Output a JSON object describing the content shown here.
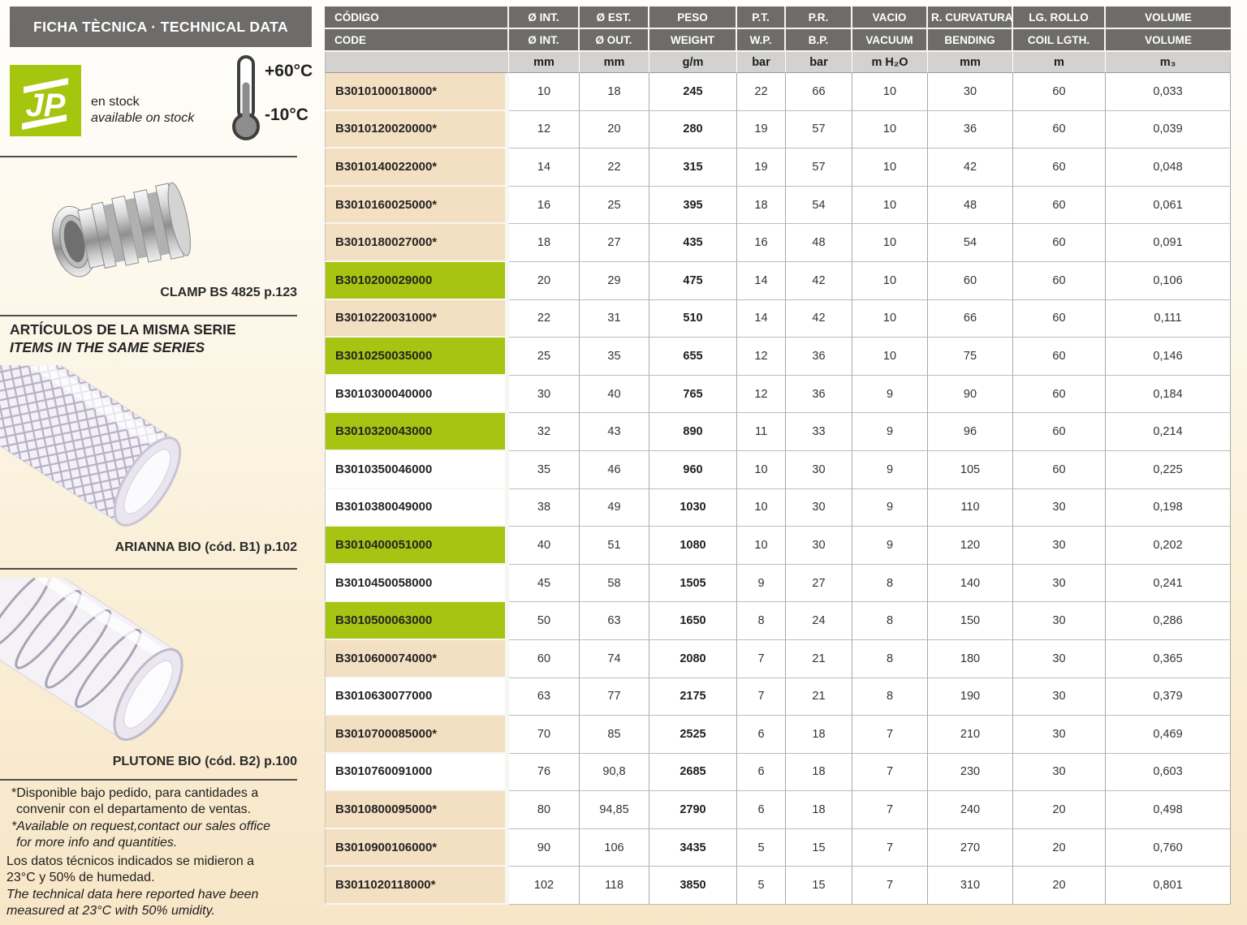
{
  "header": {
    "title": "FICHA TÈCNICA · TECHNICAL DATA"
  },
  "stock": {
    "logo_text": "JP",
    "line1": "en stock",
    "line2": "available on stock"
  },
  "temperature": {
    "max": "+60°C",
    "min": "-10°C"
  },
  "sidebar": {
    "clamp_label": "CLAMP BS 4825 p.123",
    "series_heading_es": "ARTÍCULOS DE LA MISMA SERIE",
    "series_heading_en": "ITEMS IN THE SAME SERIES",
    "arianna_label": "ARIANNA BIO (cód. B1) p.102",
    "plutone_label": "PLUTONE BIO (cód. B2) p.100",
    "footnote_available_es": "*Disponible bajo pedido, para cantidades a convenir con el departamento de ventas.",
    "footnote_available_en": "*Available on request,contact our sales office for more info and quantities.",
    "footnote_measured_es": "Los datos técnicos indicados se midieron a 23°C y 50% de humedad.",
    "footnote_measured_en": "The technical data here reported have been measured at 23°C with 50% umidity."
  },
  "colors": {
    "header_gray": "#6d6c6a",
    "unit_row_gray": "#d3d2d0",
    "highlight_green": "#a6c411",
    "highlight_tan": "#f3dfc1",
    "logo_green": "#a6c50f"
  },
  "table": {
    "columns": [
      {
        "es": "CÓDIGO",
        "en": "CODE",
        "unit": ""
      },
      {
        "es": "Ø INT.",
        "en": "Ø INT.",
        "unit": "mm"
      },
      {
        "es": "Ø EST.",
        "en": "Ø OUT.",
        "unit": "mm"
      },
      {
        "es": "PESO",
        "en": "WEIGHT",
        "unit": "g/m"
      },
      {
        "es": "P.T.",
        "en": "W.P.",
        "unit": "bar"
      },
      {
        "es": "P.R.",
        "en": "B.P.",
        "unit": "bar"
      },
      {
        "es": "VACIO",
        "en": "VACUUM",
        "unit": "m H₂O"
      },
      {
        "es": "R. CURVATURA",
        "en": "BENDING",
        "unit": "mm"
      },
      {
        "es": "LG. ROLLO",
        "en": "COIL LGTH.",
        "unit": "m"
      },
      {
        "es": "VOLUME",
        "en": "VOLUME",
        "unit": "m₃"
      }
    ],
    "rows": [
      {
        "code": "B3010100018000*",
        "highlight": "tan",
        "values": [
          "10",
          "18",
          "245",
          "22",
          "66",
          "10",
          "30",
          "60",
          "0,033"
        ]
      },
      {
        "code": "B3010120020000*",
        "highlight": "tan",
        "values": [
          "12",
          "20",
          "280",
          "19",
          "57",
          "10",
          "36",
          "60",
          "0,039"
        ]
      },
      {
        "code": "B3010140022000*",
        "highlight": "tan",
        "values": [
          "14",
          "22",
          "315",
          "19",
          "57",
          "10",
          "42",
          "60",
          "0,048"
        ]
      },
      {
        "code": "B3010160025000*",
        "highlight": "tan",
        "values": [
          "16",
          "25",
          "395",
          "18",
          "54",
          "10",
          "48",
          "60",
          "0,061"
        ]
      },
      {
        "code": "B3010180027000*",
        "highlight": "tan",
        "values": [
          "18",
          "27",
          "435",
          "16",
          "48",
          "10",
          "54",
          "60",
          "0,091"
        ]
      },
      {
        "code": "B3010200029000",
        "highlight": "green",
        "values": [
          "20",
          "29",
          "475",
          "14",
          "42",
          "10",
          "60",
          "60",
          "0,106"
        ]
      },
      {
        "code": "B3010220031000*",
        "highlight": "tan",
        "values": [
          "22",
          "31",
          "510",
          "14",
          "42",
          "10",
          "66",
          "60",
          "0,111"
        ]
      },
      {
        "code": "B3010250035000",
        "highlight": "green",
        "values": [
          "25",
          "35",
          "655",
          "12",
          "36",
          "10",
          "75",
          "60",
          "0,146"
        ]
      },
      {
        "code": "B3010300040000",
        "highlight": "",
        "values": [
          "30",
          "40",
          "765",
          "12",
          "36",
          "9",
          "90",
          "60",
          "0,184"
        ]
      },
      {
        "code": "B3010320043000",
        "highlight": "green",
        "values": [
          "32",
          "43",
          "890",
          "11",
          "33",
          "9",
          "96",
          "60",
          "0,214"
        ]
      },
      {
        "code": "B3010350046000",
        "highlight": "",
        "values": [
          "35",
          "46",
          "960",
          "10",
          "30",
          "9",
          "105",
          "60",
          "0,225"
        ]
      },
      {
        "code": "B3010380049000",
        "highlight": "",
        "values": [
          "38",
          "49",
          "1030",
          "10",
          "30",
          "9",
          "110",
          "30",
          "0,198"
        ]
      },
      {
        "code": "B3010400051000",
        "highlight": "green",
        "values": [
          "40",
          "51",
          "1080",
          "10",
          "30",
          "9",
          "120",
          "30",
          "0,202"
        ]
      },
      {
        "code": "B3010450058000",
        "highlight": "",
        "values": [
          "45",
          "58",
          "1505",
          "9",
          "27",
          "8",
          "140",
          "30",
          "0,241"
        ]
      },
      {
        "code": "B3010500063000",
        "highlight": "green",
        "values": [
          "50",
          "63",
          "1650",
          "8",
          "24",
          "8",
          "150",
          "30",
          "0,286"
        ]
      },
      {
        "code": "B3010600074000*",
        "highlight": "tan",
        "values": [
          "60",
          "74",
          "2080",
          "7",
          "21",
          "8",
          "180",
          "30",
          "0,365"
        ]
      },
      {
        "code": "B3010630077000",
        "highlight": "",
        "values": [
          "63",
          "77",
          "2175",
          "7",
          "21",
          "8",
          "190",
          "30",
          "0,379"
        ]
      },
      {
        "code": "B3010700085000*",
        "highlight": "tan",
        "values": [
          "70",
          "85",
          "2525",
          "6",
          "18",
          "7",
          "210",
          "30",
          "0,469"
        ]
      },
      {
        "code": "B3010760091000",
        "highlight": "",
        "values": [
          "76",
          "90,8",
          "2685",
          "6",
          "18",
          "7",
          "230",
          "30",
          "0,603"
        ]
      },
      {
        "code": "B3010800095000*",
        "highlight": "tan",
        "values": [
          "80",
          "94,85",
          "2790",
          "6",
          "18",
          "7",
          "240",
          "20",
          "0,498"
        ]
      },
      {
        "code": "B3010900106000*",
        "highlight": "tan",
        "values": [
          "90",
          "106",
          "3435",
          "5",
          "15",
          "7",
          "270",
          "20",
          "0,760"
        ]
      },
      {
        "code": "B3011020118000*",
        "highlight": "tan",
        "values": [
          "102",
          "118",
          "3850",
          "5",
          "15",
          "7",
          "310",
          "20",
          "0,801"
        ]
      }
    ]
  }
}
